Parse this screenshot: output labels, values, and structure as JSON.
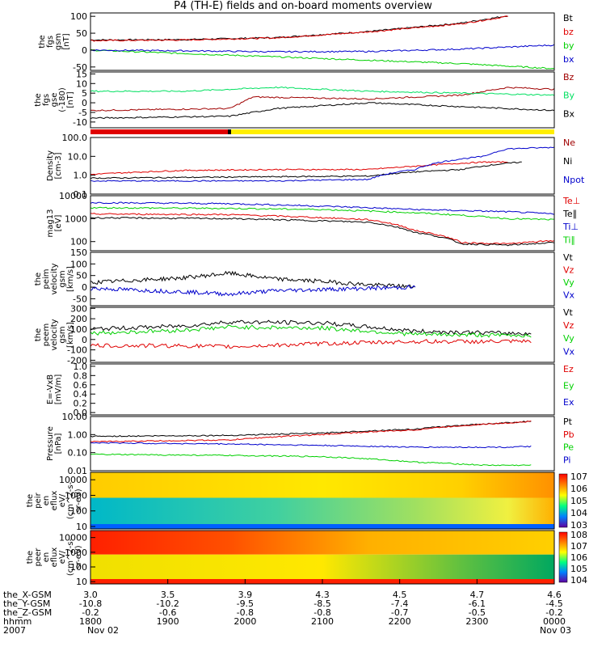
{
  "title": "P4 (TH-E) fields and on-board moments overview",
  "colors": {
    "black": "#000000",
    "red": "#e00000",
    "green": "#00d000",
    "blue": "#0000cc",
    "dred": "#a00000",
    "lgreen": "#00e060",
    "yellow": "#ffee00"
  },
  "chart_data": [
    {
      "id": "p1",
      "type": "line",
      "ylabel": [
        "the",
        "fgs",
        "gsm",
        "[nT]"
      ],
      "ylim": [
        -60,
        110
      ],
      "ticks": [
        "100",
        "50",
        "0",
        "-50"
      ],
      "tickvals": [
        100,
        50,
        0,
        -50
      ],
      "legend": [
        {
          "label": "Bt",
          "color": "black"
        },
        {
          "label": "bz",
          "color": "red"
        },
        {
          "label": "by",
          "color": "green"
        },
        {
          "label": "bx",
          "color": "blue"
        }
      ],
      "series": [
        {
          "name": "Bt",
          "color": "black",
          "points": [
            [
              0,
              30
            ],
            [
              0.2,
              31
            ],
            [
              0.4,
              37
            ],
            [
              0.6,
              55
            ],
            [
              0.8,
              80
            ],
            [
              0.9,
              102
            ]
          ]
        },
        {
          "name": "bz",
          "color": "red",
          "points": [
            [
              0,
              28
            ],
            [
              0.2,
              30
            ],
            [
              0.4,
              36
            ],
            [
              0.6,
              54
            ],
            [
              0.8,
              78
            ],
            [
              0.9,
              100
            ]
          ]
        },
        {
          "name": "by",
          "color": "green",
          "points": [
            [
              0,
              0
            ],
            [
              0.2,
              -10
            ],
            [
              0.4,
              -20
            ],
            [
              0.6,
              -30
            ],
            [
              0.8,
              -40
            ],
            [
              1,
              -55
            ]
          ]
        },
        {
          "name": "bx",
          "color": "blue",
          "points": [
            [
              0,
              0
            ],
            [
              0.2,
              -2
            ],
            [
              0.4,
              -5
            ],
            [
              0.6,
              -4
            ],
            [
              0.8,
              3
            ],
            [
              1,
              15
            ]
          ]
        }
      ]
    },
    {
      "id": "p2",
      "type": "line",
      "ylabel": [
        "the",
        "fgs",
        "gse",
        "(-180)",
        "[nT]"
      ],
      "ylim": [
        -13,
        16
      ],
      "ticks": [
        "15",
        "10",
        "5",
        "0",
        "-5",
        "-10"
      ],
      "tickvals": [
        15,
        10,
        5,
        0,
        -5,
        -10
      ],
      "legend": [
        {
          "label": "Bz",
          "color": "dred"
        },
        {
          "label": "By",
          "color": "lgreen"
        },
        {
          "label": "Bx",
          "color": "black"
        }
      ],
      "series": [
        {
          "name": "Bz",
          "color": "dred",
          "points": [
            [
              0,
              -4
            ],
            [
              0.3,
              -3
            ],
            [
              0.35,
              3
            ],
            [
              0.6,
              2
            ],
            [
              0.8,
              4
            ],
            [
              0.9,
              8
            ],
            [
              1,
              7
            ]
          ]
        },
        {
          "name": "By",
          "color": "lgreen",
          "points": [
            [
              0,
              6
            ],
            [
              0.2,
              6
            ],
            [
              0.4,
              8
            ],
            [
              0.6,
              6
            ],
            [
              0.8,
              5
            ],
            [
              1,
              4
            ]
          ]
        },
        {
          "name": "Bx",
          "color": "black",
          "points": [
            [
              0,
              -8
            ],
            [
              0.3,
              -7
            ],
            [
              0.4,
              -3
            ],
            [
              0.6,
              0
            ],
            [
              0.8,
              -2
            ],
            [
              1,
              -4
            ]
          ]
        }
      ]
    },
    {
      "id": "p3",
      "type": "line",
      "ylabel": [
        "Density",
        "[cm-3]"
      ],
      "log": true,
      "ylim": [
        0.1,
        100
      ],
      "ticks": [
        "100.0",
        "10.0",
        "1.0",
        "0.1"
      ],
      "tickvals": [
        100,
        10,
        1,
        0.1
      ],
      "legend": [
        {
          "label": "Ne",
          "color": "dred"
        },
        {
          "label": "Ni",
          "color": "black"
        },
        {
          "label": "Npot",
          "color": "blue"
        }
      ],
      "series": [
        {
          "name": "Ne",
          "color": "red",
          "points": [
            [
              0,
              1.1
            ],
            [
              0.2,
              1.8
            ],
            [
              0.4,
              2
            ],
            [
              0.6,
              2
            ],
            [
              0.7,
              3
            ],
            [
              0.85,
              5
            ],
            [
              0.9,
              5
            ]
          ]
        },
        {
          "name": "Ni",
          "color": "black",
          "points": [
            [
              0,
              0.7
            ],
            [
              0.3,
              0.8
            ],
            [
              0.6,
              0.9
            ],
            [
              0.7,
              1.5
            ],
            [
              0.8,
              2
            ],
            [
              0.93,
              5
            ]
          ]
        },
        {
          "name": "Npot",
          "color": "blue",
          "points": [
            [
              0,
              0.5
            ],
            [
              0.4,
              0.5
            ],
            [
              0.6,
              0.6
            ],
            [
              0.7,
              2
            ],
            [
              0.85,
              10
            ],
            [
              0.9,
              25
            ],
            [
              1,
              30
            ]
          ]
        }
      ]
    },
    {
      "id": "p4",
      "type": "line",
      "ylabel": [
        "mag13",
        "[eV]"
      ],
      "log": true,
      "ylim": [
        40,
        10000
      ],
      "ticks": [
        "10000",
        "1000",
        "100"
      ],
      "tickvals": [
        10000,
        1000,
        100
      ],
      "legend": [
        {
          "label": "Te⊥",
          "color": "red"
        },
        {
          "label": "Te∥",
          "color": "black"
        },
        {
          "label": "Ti⊥",
          "color": "blue"
        },
        {
          "label": "Ti∥",
          "color": "green"
        }
      ],
      "series": [
        {
          "name": "Ti⊥",
          "color": "blue",
          "points": [
            [
              0,
              5000
            ],
            [
              0.3,
              4500
            ],
            [
              0.5,
              3500
            ],
            [
              0.7,
              2500
            ],
            [
              0.9,
              2000
            ],
            [
              1,
              1600
            ]
          ]
        },
        {
          "name": "Ti∥",
          "color": "green",
          "points": [
            [
              0,
              3000
            ],
            [
              0.3,
              2800
            ],
            [
              0.5,
              2500
            ],
            [
              0.7,
              1800
            ],
            [
              0.9,
              1000
            ],
            [
              1,
              900
            ]
          ]
        },
        {
          "name": "Te⊥",
          "color": "red",
          "points": [
            [
              0,
              1600
            ],
            [
              0.3,
              1500
            ],
            [
              0.6,
              900
            ],
            [
              0.7,
              300
            ],
            [
              0.8,
              90
            ],
            [
              0.9,
              80
            ],
            [
              1,
              110
            ]
          ]
        },
        {
          "name": "Te∥",
          "color": "black",
          "points": [
            [
              0,
              1100
            ],
            [
              0.3,
              1000
            ],
            [
              0.6,
              700
            ],
            [
              0.7,
              250
            ],
            [
              0.8,
              80
            ],
            [
              0.9,
              70
            ],
            [
              1,
              90
            ]
          ]
        }
      ]
    },
    {
      "id": "p5",
      "type": "line",
      "ylabel": [
        "the",
        "peim",
        "velocity",
        "gsm",
        "[km/s]"
      ],
      "ylim": [
        -80,
        150
      ],
      "ticks": [
        "150",
        "100",
        "50",
        "0",
        "-50"
      ],
      "tickvals": [
        150,
        100,
        50,
        0,
        -50
      ],
      "legend": [
        {
          "label": "Vt",
          "color": "black"
        },
        {
          "label": "Vz",
          "color": "red"
        },
        {
          "label": "Vy",
          "color": "green"
        },
        {
          "label": "Vx",
          "color": "blue"
        }
      ],
      "series": [
        {
          "name": "Vt",
          "color": "black",
          "points": [
            [
              0,
              20
            ],
            [
              0.2,
              40
            ],
            [
              0.3,
              60
            ],
            [
              0.4,
              35
            ],
            [
              0.5,
              25
            ],
            [
              0.6,
              10
            ],
            [
              0.7,
              2
            ]
          ]
        },
        {
          "name": "Vx",
          "color": "blue",
          "points": [
            [
              0,
              -5
            ],
            [
              0.2,
              -20
            ],
            [
              0.3,
              -30
            ],
            [
              0.4,
              -15
            ],
            [
              0.5,
              -10
            ],
            [
              0.6,
              -5
            ],
            [
              0.7,
              0
            ]
          ]
        }
      ]
    },
    {
      "id": "p6",
      "type": "line",
      "ylabel": [
        "the",
        "peem",
        "velocity",
        "gsm",
        "[km/s]"
      ],
      "ylim": [
        -220,
        310
      ],
      "ticks": [
        "300",
        "200",
        "100",
        "0",
        "-100",
        "-200"
      ],
      "tickvals": [
        300,
        200,
        100,
        0,
        -100,
        -200
      ],
      "legend": [
        {
          "label": "Vt",
          "color": "black"
        },
        {
          "label": "Vz",
          "color": "red"
        },
        {
          "label": "Vy",
          "color": "green"
        },
        {
          "label": "Vx",
          "color": "blue"
        }
      ],
      "series": [
        {
          "name": "Vt",
          "color": "black",
          "points": [
            [
              0,
              100
            ],
            [
              0.2,
              130
            ],
            [
              0.3,
              170
            ],
            [
              0.5,
              160
            ],
            [
              0.7,
              80
            ],
            [
              0.9,
              60
            ],
            [
              0.95,
              60
            ]
          ]
        },
        {
          "name": "Vy",
          "color": "green",
          "points": [
            [
              0,
              60
            ],
            [
              0.2,
              90
            ],
            [
              0.3,
              120
            ],
            [
              0.5,
              110
            ],
            [
              0.7,
              50
            ],
            [
              0.9,
              40
            ],
            [
              0.95,
              40
            ]
          ]
        },
        {
          "name": "Vz",
          "color": "red",
          "points": [
            [
              0,
              -60
            ],
            [
              0.2,
              -60
            ],
            [
              0.3,
              -70
            ],
            [
              0.5,
              -40
            ],
            [
              0.7,
              -20
            ],
            [
              0.9,
              -20
            ],
            [
              0.95,
              -20
            ]
          ]
        }
      ]
    },
    {
      "id": "p7",
      "type": "line",
      "ylabel": [
        "E=-VxB",
        "[mV/m]"
      ],
      "ylim": [
        -0.05,
        1.05
      ],
      "ticks": [
        "1.0",
        "0.8",
        "0.6",
        "0.4",
        "0.2",
        "0.0"
      ],
      "tickvals": [
        1,
        0.8,
        0.6,
        0.4,
        0.2,
        0
      ],
      "legend": [
        {
          "label": "Ez",
          "color": "red"
        },
        {
          "label": "Ey",
          "color": "green"
        },
        {
          "label": "Ex",
          "color": "blue"
        }
      ],
      "series": []
    },
    {
      "id": "p8",
      "type": "line",
      "ylabel": [
        "Pressure",
        "[nPa]"
      ],
      "log": true,
      "ylim": [
        0.01,
        10
      ],
      "ticks": [
        "10.00",
        "1.00",
        "0.10",
        "0.01"
      ],
      "tickvals": [
        10,
        1,
        0.1,
        0.01
      ],
      "legend": [
        {
          "label": "Pt",
          "color": "black"
        },
        {
          "label": "Pb",
          "color": "red"
        },
        {
          "label": "Pe",
          "color": "green"
        },
        {
          "label": "Pi",
          "color": "blue"
        }
      ],
      "series": [
        {
          "name": "Pt",
          "color": "black",
          "points": [
            [
              0,
              0.8
            ],
            [
              0.3,
              0.9
            ],
            [
              0.5,
              1.2
            ],
            [
              0.7,
              2
            ],
            [
              0.9,
              4.5
            ],
            [
              0.95,
              5.5
            ]
          ]
        },
        {
          "name": "Pb",
          "color": "red",
          "points": [
            [
              0,
              0.4
            ],
            [
              0.3,
              0.5
            ],
            [
              0.5,
              1
            ],
            [
              0.7,
              1.8
            ],
            [
              0.9,
              4.4
            ],
            [
              0.95,
              5.4
            ]
          ]
        },
        {
          "name": "Pi",
          "color": "blue",
          "points": [
            [
              0,
              0.35
            ],
            [
              0.3,
              0.3
            ],
            [
              0.5,
              0.25
            ],
            [
              0.7,
              0.2
            ],
            [
              0.9,
              0.2
            ],
            [
              0.95,
              0.22
            ]
          ]
        },
        {
          "name": "Pe",
          "color": "green",
          "points": [
            [
              0,
              0.08
            ],
            [
              0.3,
              0.07
            ],
            [
              0.5,
              0.06
            ],
            [
              0.7,
              0.03
            ],
            [
              0.85,
              0.02
            ],
            [
              0.95,
              0.02
            ]
          ]
        }
      ]
    },
    {
      "id": "p9",
      "type": "heatmap",
      "ylabel": [
        "the",
        "peir",
        "en",
        "eflux",
        "eV/",
        "(cm^2-s-",
        "sr-eV)"
      ],
      "log": true,
      "ylim": [
        7,
        30000
      ],
      "ticks": [
        "10000",
        "1000",
        "100",
        "10"
      ],
      "tickvals": [
        10000,
        1000,
        100,
        10
      ],
      "colorbar": [
        "10^7",
        "10^6",
        "10^5",
        "10^4",
        "10^3"
      ]
    },
    {
      "id": "p10",
      "type": "heatmap",
      "ylabel": [
        "the",
        "peer",
        "en",
        "eflux",
        "eV/",
        "(cm^2-s-",
        "sr-eV)"
      ],
      "log": true,
      "ylim": [
        7,
        30000
      ],
      "ticks": [
        "10000",
        "1000",
        "100",
        "10"
      ],
      "tickvals": [
        10000,
        1000,
        100,
        10
      ],
      "colorbar": [
        "10^8",
        "10^7",
        "10^6",
        "10^5",
        "10^4"
      ]
    }
  ],
  "footer": {
    "row_labels": [
      "the_X-GSM",
      "the_Y-GSM",
      "the_Z-GSM",
      "hhmm",
      "2007"
    ],
    "columns": [
      {
        "x": "3.0",
        "y": "-10.8",
        "z": "-0.2",
        "t": "1800",
        "d": "Nov 02"
      },
      {
        "x": "3.5",
        "y": "-10.2",
        "z": "-0.6",
        "t": "1900",
        "d": ""
      },
      {
        "x": "3.9",
        "y": "-9.5",
        "z": "-0.8",
        "t": "2000",
        "d": ""
      },
      {
        "x": "4.3",
        "y": "-8.5",
        "z": "-0.8",
        "t": "2100",
        "d": ""
      },
      {
        "x": "4.5",
        "y": "-7.4",
        "z": "-0.7",
        "t": "2200",
        "d": ""
      },
      {
        "x": "4.7",
        "y": "-6.1",
        "z": "-0.5",
        "t": "2300",
        "d": ""
      },
      {
        "x": "4.6",
        "y": "-4.5",
        "z": "-0.2",
        "t": "0000",
        "d": "Nov 03"
      }
    ]
  }
}
